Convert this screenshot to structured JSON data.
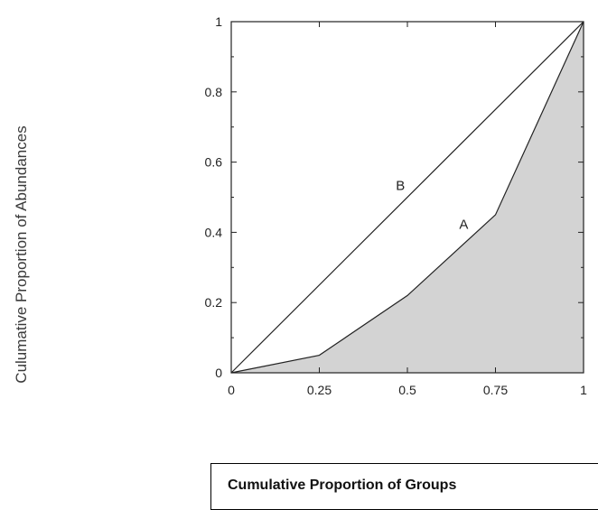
{
  "chart_data": {
    "type": "line",
    "title": "",
    "xlabel": "Cumulative Proportion of Groups",
    "ylabel": "Culumative Proportion of Abundances",
    "xlim": [
      0,
      1
    ],
    "ylim": [
      0,
      1
    ],
    "xticks": [
      "0",
      "0.25",
      "0.5",
      "0.75",
      "1"
    ],
    "yticks": [
      "0",
      "0.2",
      "0.4",
      "0.6",
      "0.8",
      "1"
    ],
    "series": [
      {
        "name": "A",
        "x": [
          0,
          0.25,
          0.5,
          0.75,
          1
        ],
        "y": [
          0,
          0.05,
          0.22,
          0.45,
          1
        ],
        "fill": "#d3d3d3"
      },
      {
        "name": "B",
        "x": [
          0,
          1
        ],
        "y": [
          0,
          1
        ]
      }
    ],
    "grid": false,
    "legend": "none"
  }
}
